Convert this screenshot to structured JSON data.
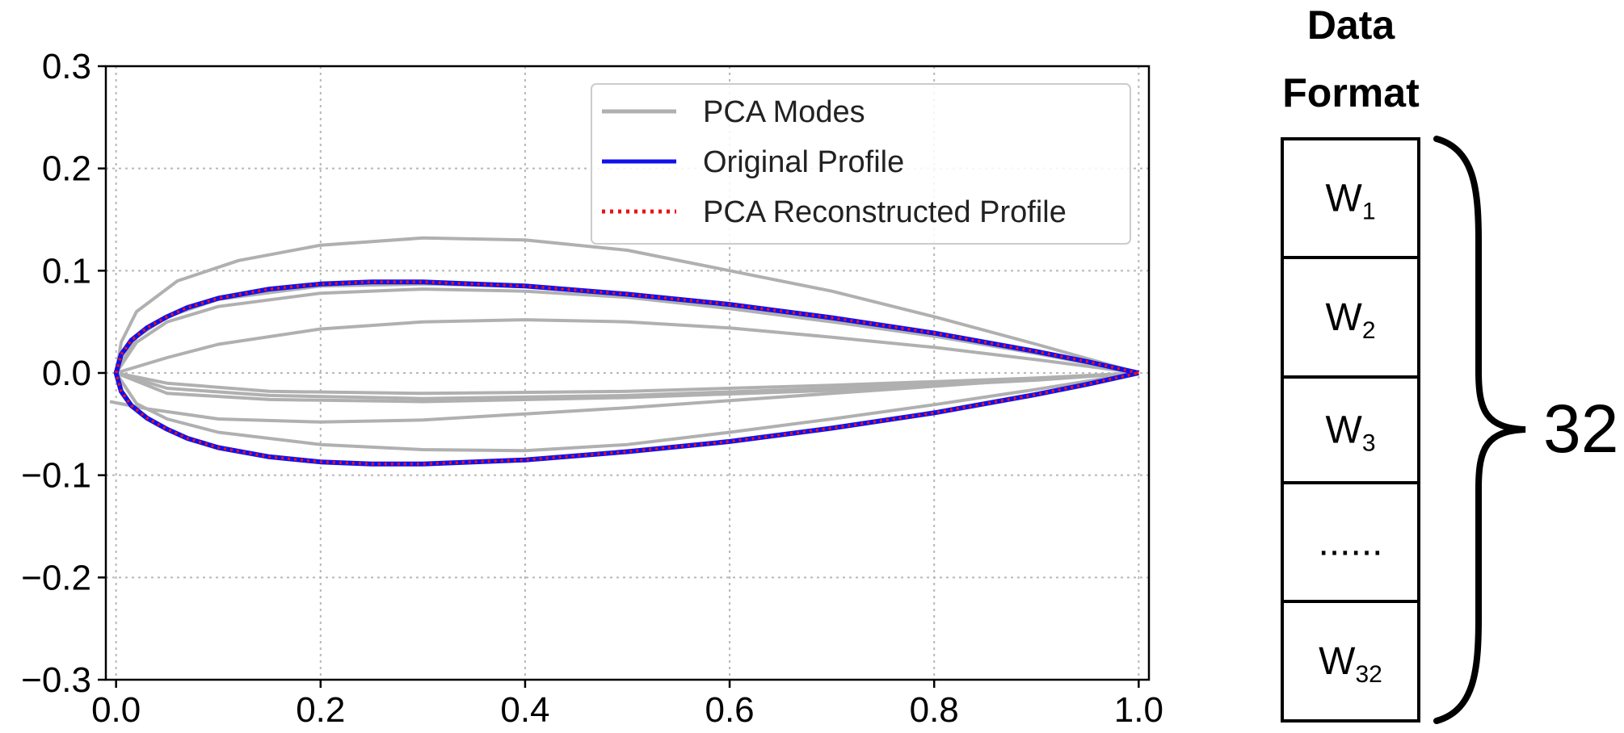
{
  "chart_data": {
    "type": "line",
    "title": "",
    "xlabel": "",
    "ylabel": "",
    "xlim": [
      -0.01,
      1.01
    ],
    "ylim": [
      -0.3,
      0.3
    ],
    "grid": true,
    "x_ticks": [
      0.0,
      0.2,
      0.4,
      0.6,
      0.8,
      1.0
    ],
    "x_tick_labels": [
      "0.0",
      "0.2",
      "0.4",
      "0.6",
      "0.8",
      "1.0"
    ],
    "y_ticks": [
      0.3,
      0.2,
      0.1,
      0.0,
      -0.1,
      -0.2,
      -0.3
    ],
    "y_tick_labels": [
      "0.3",
      "0.2",
      "0.1",
      "0.0",
      "−0.1",
      "−0.2",
      "−0.3"
    ],
    "legend_position": "top-right",
    "series": [
      {
        "name": "PCA Modes",
        "color": "#b0b0b0",
        "style": "solid",
        "curves": [
          [
            [
              0.0,
              0.0
            ],
            [
              0.005,
              0.03
            ],
            [
              0.02,
              0.06
            ],
            [
              0.06,
              0.09
            ],
            [
              0.12,
              0.11
            ],
            [
              0.2,
              0.125
            ],
            [
              0.3,
              0.132
            ],
            [
              0.4,
              0.13
            ],
            [
              0.5,
              0.12
            ],
            [
              0.6,
              0.1
            ],
            [
              0.7,
              0.08
            ],
            [
              0.8,
              0.055
            ],
            [
              0.9,
              0.028
            ],
            [
              1.0,
              0.0
            ]
          ],
          [
            [
              0.0,
              0.0
            ],
            [
              0.02,
              0.035
            ],
            [
              0.05,
              0.055
            ],
            [
              0.1,
              0.072
            ],
            [
              0.2,
              0.085
            ],
            [
              0.3,
              0.087
            ],
            [
              0.4,
              0.085
            ],
            [
              0.5,
              0.078
            ],
            [
              0.6,
              0.067
            ],
            [
              0.7,
              0.053
            ],
            [
              0.8,
              0.038
            ],
            [
              0.9,
              0.02
            ],
            [
              1.0,
              0.0
            ]
          ],
          [
            [
              0.0,
              0.0
            ],
            [
              0.02,
              0.03
            ],
            [
              0.05,
              0.05
            ],
            [
              0.1,
              0.065
            ],
            [
              0.2,
              0.078
            ],
            [
              0.3,
              0.082
            ],
            [
              0.4,
              0.08
            ],
            [
              0.5,
              0.074
            ],
            [
              0.6,
              0.063
            ],
            [
              0.7,
              0.05
            ],
            [
              0.8,
              0.036
            ],
            [
              0.9,
              0.019
            ],
            [
              1.0,
              0.0
            ]
          ],
          [
            [
              0.0,
              0.0
            ],
            [
              0.05,
              0.015
            ],
            [
              0.1,
              0.028
            ],
            [
              0.2,
              0.043
            ],
            [
              0.3,
              0.05
            ],
            [
              0.4,
              0.052
            ],
            [
              0.5,
              0.05
            ],
            [
              0.6,
              0.044
            ],
            [
              0.7,
              0.035
            ],
            [
              0.8,
              0.025
            ],
            [
              0.9,
              0.013
            ],
            [
              1.0,
              0.0
            ]
          ],
          [
            [
              0.0,
              0.0
            ],
            [
              0.05,
              -0.015
            ],
            [
              0.15,
              -0.022
            ],
            [
              0.3,
              -0.025
            ],
            [
              0.5,
              -0.022
            ],
            [
              0.7,
              -0.015
            ],
            [
              0.9,
              -0.006
            ],
            [
              1.0,
              0.0
            ]
          ],
          [
            [
              0.0,
              0.0
            ],
            [
              0.05,
              -0.01
            ],
            [
              0.15,
              -0.018
            ],
            [
              0.3,
              -0.02
            ],
            [
              0.5,
              -0.018
            ],
            [
              0.7,
              -0.012
            ],
            [
              0.9,
              -0.005
            ],
            [
              1.0,
              0.0
            ]
          ],
          [
            [
              0.0,
              0.0
            ],
            [
              0.05,
              -0.02
            ],
            [
              0.15,
              -0.026
            ],
            [
              0.3,
              -0.028
            ],
            [
              0.5,
              -0.024
            ],
            [
              0.7,
              -0.017
            ],
            [
              0.9,
              -0.007
            ],
            [
              1.0,
              0.0
            ]
          ],
          [
            [
              -0.006,
              -0.028
            ],
            [
              0.03,
              -0.035
            ],
            [
              0.1,
              -0.045
            ],
            [
              0.2,
              -0.048
            ],
            [
              0.3,
              -0.046
            ],
            [
              0.4,
              -0.04
            ],
            [
              0.5,
              -0.034
            ],
            [
              0.6,
              -0.027
            ],
            [
              0.7,
              -0.02
            ],
            [
              0.8,
              -0.013
            ],
            [
              0.9,
              -0.006
            ],
            [
              1.0,
              0.0
            ]
          ],
          [
            [
              0.0,
              0.0
            ],
            [
              0.02,
              -0.03
            ],
            [
              0.05,
              -0.045
            ],
            [
              0.1,
              -0.058
            ],
            [
              0.2,
              -0.07
            ],
            [
              0.3,
              -0.075
            ],
            [
              0.4,
              -0.076
            ],
            [
              0.5,
              -0.07
            ],
            [
              0.6,
              -0.058
            ],
            [
              0.7,
              -0.045
            ],
            [
              0.8,
              -0.031
            ],
            [
              0.9,
              -0.016
            ],
            [
              1.0,
              0.0
            ]
          ]
        ]
      },
      {
        "name": "Original Profile",
        "color": "#1010ee",
        "style": "solid",
        "curves": [
          [
            [
              1.0,
              0.0
            ],
            [
              0.95,
              0.011
            ],
            [
              0.9,
              0.021
            ],
            [
              0.8,
              0.039
            ],
            [
              0.7,
              0.054
            ],
            [
              0.6,
              0.067
            ],
            [
              0.5,
              0.077
            ],
            [
              0.4,
              0.085
            ],
            [
              0.3,
              0.089
            ],
            [
              0.25,
              0.089
            ],
            [
              0.2,
              0.087
            ],
            [
              0.15,
              0.082
            ],
            [
              0.1,
              0.073
            ],
            [
              0.07,
              0.064
            ],
            [
              0.05,
              0.055
            ],
            [
              0.03,
              0.044
            ],
            [
              0.015,
              0.032
            ],
            [
              0.005,
              0.018
            ],
            [
              0.0,
              0.0
            ],
            [
              0.005,
              -0.018
            ],
            [
              0.015,
              -0.032
            ],
            [
              0.03,
              -0.044
            ],
            [
              0.05,
              -0.055
            ],
            [
              0.07,
              -0.064
            ],
            [
              0.1,
              -0.073
            ],
            [
              0.15,
              -0.082
            ],
            [
              0.2,
              -0.087
            ],
            [
              0.25,
              -0.089
            ],
            [
              0.3,
              -0.089
            ],
            [
              0.4,
              -0.085
            ],
            [
              0.5,
              -0.077
            ],
            [
              0.6,
              -0.067
            ],
            [
              0.7,
              -0.054
            ],
            [
              0.8,
              -0.039
            ],
            [
              0.9,
              -0.021
            ],
            [
              0.95,
              -0.011
            ],
            [
              1.0,
              0.0
            ]
          ]
        ]
      },
      {
        "name": "PCA Reconstructed Profile",
        "color": "#ee1010",
        "style": "dotted",
        "curves": [
          [
            [
              1.0,
              0.0
            ],
            [
              0.95,
              0.011
            ],
            [
              0.9,
              0.021
            ],
            [
              0.8,
              0.039
            ],
            [
              0.7,
              0.054
            ],
            [
              0.6,
              0.067
            ],
            [
              0.5,
              0.077
            ],
            [
              0.4,
              0.085
            ],
            [
              0.3,
              0.089
            ],
            [
              0.25,
              0.089
            ],
            [
              0.2,
              0.087
            ],
            [
              0.15,
              0.082
            ],
            [
              0.1,
              0.073
            ],
            [
              0.07,
              0.064
            ],
            [
              0.05,
              0.055
            ],
            [
              0.03,
              0.044
            ],
            [
              0.015,
              0.032
            ],
            [
              0.005,
              0.018
            ],
            [
              0.0,
              0.0
            ],
            [
              0.005,
              -0.018
            ],
            [
              0.015,
              -0.032
            ],
            [
              0.03,
              -0.044
            ],
            [
              0.05,
              -0.055
            ],
            [
              0.07,
              -0.064
            ],
            [
              0.1,
              -0.073
            ],
            [
              0.15,
              -0.082
            ],
            [
              0.2,
              -0.087
            ],
            [
              0.25,
              -0.089
            ],
            [
              0.3,
              -0.089
            ],
            [
              0.4,
              -0.085
            ],
            [
              0.5,
              -0.077
            ],
            [
              0.6,
              -0.067
            ],
            [
              0.7,
              -0.054
            ],
            [
              0.8,
              -0.039
            ],
            [
              0.9,
              -0.021
            ],
            [
              0.95,
              -0.011
            ],
            [
              1.0,
              0.0
            ]
          ]
        ]
      }
    ]
  },
  "data_format": {
    "title_line1": "Data",
    "title_line2": "Format",
    "cells": [
      {
        "base": "W",
        "sub": "1"
      },
      {
        "base": "W",
        "sub": "2"
      },
      {
        "base": "W",
        "sub": "3"
      },
      {
        "base": "......",
        "sub": ""
      },
      {
        "base": "W",
        "sub": "32"
      }
    ],
    "brace_label": "32"
  }
}
